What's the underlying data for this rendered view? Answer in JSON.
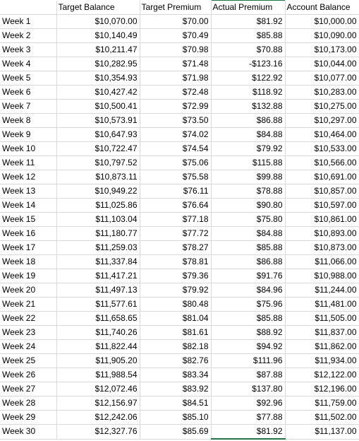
{
  "sheet": {
    "headers": [
      "",
      "Target Balance",
      "Target Premium",
      "Actual Premium",
      "Account Balance"
    ],
    "rows": [
      [
        "Week 1",
        "$10,070.00",
        "$70.00",
        "$81.92",
        "$10,000.00"
      ],
      [
        "Week 2",
        "$10,140.49",
        "$70.49",
        "$85.88",
        "$10,090.00"
      ],
      [
        "Week 3",
        "$10,211.47",
        "$70.98",
        "$70.88",
        "$10,173.00"
      ],
      [
        "Week 4",
        "$10,282.95",
        "$71.48",
        "-$123.16",
        "$10,044.00"
      ],
      [
        "Week 5",
        "$10,354.93",
        "$71.98",
        "$122.92",
        "$10,077.00"
      ],
      [
        "Week 6",
        "$10,427.42",
        "$72.48",
        "$118.92",
        "$10,283.00"
      ],
      [
        "Week 7",
        "$10,500.41",
        "$72.99",
        "$132.88",
        "$10,275.00"
      ],
      [
        "Week 8",
        "$10,573.91",
        "$73.50",
        "$86.88",
        "$10,297.00"
      ],
      [
        "Week 9",
        "$10,647.93",
        "$74.02",
        "$84.88",
        "$10,464.00"
      ],
      [
        "Week 10",
        "$10,722.47",
        "$74.54",
        "$79.92",
        "$10,533.00"
      ],
      [
        "Week 11",
        "$10,797.52",
        "$75.06",
        "$115.88",
        "$10,566.00"
      ],
      [
        "Week 12",
        "$10,873.11",
        "$75.58",
        "$99.88",
        "$10,691.00"
      ],
      [
        "Week 13",
        "$10,949.22",
        "$76.11",
        "$78.88",
        "$10,857.00"
      ],
      [
        "Week 14",
        "$11,025.86",
        "$76.64",
        "$90.80",
        "$10,597.00"
      ],
      [
        "Week 15",
        "$11,103.04",
        "$77.18",
        "$75.80",
        "$10,861.00"
      ],
      [
        "Week 16",
        "$11,180.77",
        "$77.72",
        "$84.88",
        "$10,893.00"
      ],
      [
        "Week 17",
        "$11,259.03",
        "$78.27",
        "$85.88",
        "$10,873.00"
      ],
      [
        "Week 18",
        "$11,337.84",
        "$78.81",
        "$86.88",
        "$11,066.00"
      ],
      [
        "Week 19",
        "$11,417.21",
        "$79.36",
        "$91.76",
        "$10,988.00"
      ],
      [
        "Week 20",
        "$11,497.13",
        "$79.92",
        "$84.96",
        "$11,244.00"
      ],
      [
        "Week 21",
        "$11,577.61",
        "$80.48",
        "$75.96",
        "$11,481.00"
      ],
      [
        "Week 22",
        "$11,658.65",
        "$81.04",
        "$85.88",
        "$11,505.00"
      ],
      [
        "Week 23",
        "$11,740.26",
        "$81.61",
        "$88.92",
        "$11,837.00"
      ],
      [
        "Week 24",
        "$11,822.44",
        "$82.18",
        "$94.92",
        "$11,862.00"
      ],
      [
        "Week 25",
        "$11,905.20",
        "$82.76",
        "$111.96",
        "$11,934.00"
      ],
      [
        "Week 26",
        "$11,988.54",
        "$83.34",
        "$87.88",
        "$12,122.00"
      ],
      [
        "Week 27",
        "$12,072.46",
        "$83.92",
        "$137.80",
        "$12,196.00"
      ],
      [
        "Week 28",
        "$12,156.97",
        "$84.51",
        "$92.96",
        "$11,759.00"
      ],
      [
        "Week 29",
        "$12,242.06",
        "$85.10",
        "$77.88",
        "$11,502.00"
      ],
      [
        "Week 30",
        "$12,327.76",
        "$85.69",
        "$81.92",
        "$11,137.00"
      ]
    ]
  },
  "colors": {
    "gridline": "#d9d9d9",
    "selection": "#217346",
    "text": "#000000",
    "background": "#ffffff"
  }
}
